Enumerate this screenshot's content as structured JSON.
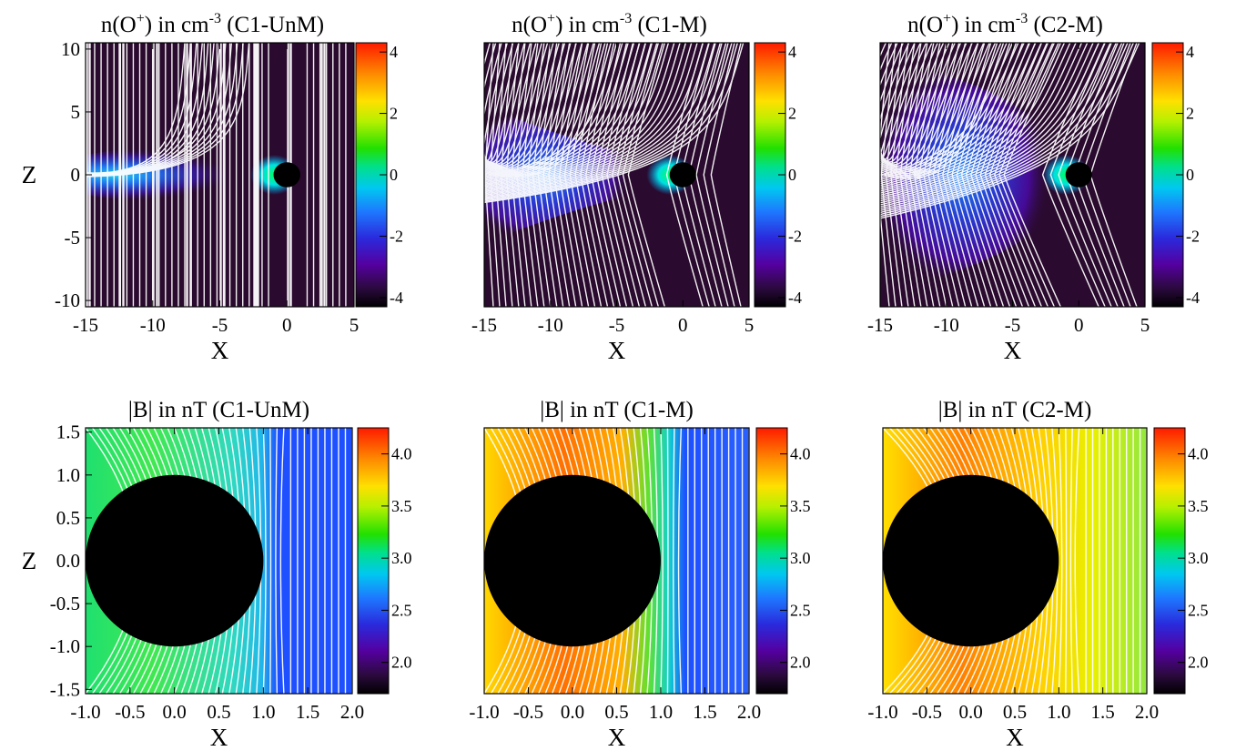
{
  "chart_data": [
    {
      "type": "heatmap",
      "title_main": "n(O",
      "title_sup1": "+",
      "title_mid": ") in cm",
      "title_sup2": "-3",
      "title_case": " (C1-UnM)",
      "xlabel": "X",
      "ylabel": "Z",
      "xlim": [
        -15,
        5
      ],
      "ylim": [
        -10.5,
        10.5
      ],
      "xticks": [
        "-15",
        "-10",
        "-5",
        "0",
        "5"
      ],
      "yticks": [
        "10",
        "5",
        "0",
        "-5",
        "-10"
      ],
      "colorbar_range": [
        -4.3,
        4.3
      ],
      "colorbar_ticks": [
        "4",
        "2",
        "0",
        "-2",
        "-4"
      ],
      "obstacle_radius": 1
    },
    {
      "type": "heatmap",
      "title_main": "n(O",
      "title_sup1": "+",
      "title_mid": ") in cm",
      "title_sup2": "-3",
      "title_case": " (C1-M)",
      "xlabel": "X",
      "ylabel": "",
      "xlim": [
        -15,
        5
      ],
      "ylim": [
        -10.5,
        10.5
      ],
      "xticks": [
        "-15",
        "-10",
        "-5",
        "0",
        "5"
      ],
      "yticks": [],
      "colorbar_range": [
        -4.3,
        4.3
      ],
      "colorbar_ticks": [
        "4",
        "2",
        "0",
        "-2",
        "-4"
      ],
      "obstacle_radius": 1
    },
    {
      "type": "heatmap",
      "title_main": "n(O",
      "title_sup1": "+",
      "title_mid": ") in cm",
      "title_sup2": "-3",
      "title_case": " (C2-M)",
      "xlabel": "X",
      "ylabel": "",
      "xlim": [
        -15,
        5
      ],
      "ylim": [
        -10.5,
        10.5
      ],
      "xticks": [
        "-15",
        "-10",
        "-5",
        "0",
        "5"
      ],
      "yticks": [],
      "colorbar_range": [
        -4.3,
        4.3
      ],
      "colorbar_ticks": [
        "4",
        "2",
        "0",
        "-2",
        "-4"
      ],
      "obstacle_radius": 1
    },
    {
      "type": "heatmap",
      "title": "|B| in nT (C1-UnM)",
      "xlabel": "X",
      "ylabel": "Z",
      "xlim": [
        -1.0,
        2.0
      ],
      "ylim": [
        -1.55,
        1.55
      ],
      "xticks": [
        "-1.0",
        "-0.5",
        "0.0",
        "0.5",
        "1.0",
        "1.5",
        "2.0"
      ],
      "yticks": [
        "1.5",
        "1.0",
        "0.5",
        "0.0",
        "-0.5",
        "-1.0",
        "-1.5"
      ],
      "colorbar_range": [
        1.7,
        4.25
      ],
      "colorbar_ticks": [
        "4.0",
        "3.5",
        "3.0",
        "2.5",
        "2.0"
      ],
      "obstacle_radius": 1
    },
    {
      "type": "heatmap",
      "title": "|B| in nT (C1-M)",
      "xlabel": "X",
      "ylabel": "",
      "xlim": [
        -1.0,
        2.0
      ],
      "ylim": [
        -1.55,
        1.55
      ],
      "xticks": [
        "-1.0",
        "-0.5",
        "0.0",
        "0.5",
        "1.0",
        "1.5",
        "2.0"
      ],
      "yticks": [],
      "colorbar_range": [
        1.7,
        4.25
      ],
      "colorbar_ticks": [
        "4.0",
        "3.5",
        "3.0",
        "2.5",
        "2.0"
      ],
      "obstacle_radius": 1
    },
    {
      "type": "heatmap",
      "title": "|B| in nT (C2-M)",
      "xlabel": "X",
      "ylabel": "",
      "xlim": [
        -1.0,
        2.0
      ],
      "ylim": [
        -1.55,
        1.55
      ],
      "xticks": [
        "-1.0",
        "-0.5",
        "0.0",
        "0.5",
        "1.0",
        "1.5",
        "2.0"
      ],
      "yticks": [],
      "colorbar_range": [
        1.7,
        4.25
      ],
      "colorbar_ticks": [
        "4.0",
        "3.5",
        "3.0",
        "2.5",
        "2.0"
      ],
      "obstacle_radius": 1
    }
  ],
  "colors": {
    "background_top": "#2a0a2e",
    "field_lines": "#ffffff",
    "obstacle": "#000000",
    "colormap": [
      "#000000",
      "#2b0a3e",
      "#5500a0",
      "#2a2adc",
      "#1e78ff",
      "#00c8f0",
      "#00e08c",
      "#22e000",
      "#b4f000",
      "#ffe000",
      "#ff8c00",
      "#ff2000"
    ]
  }
}
